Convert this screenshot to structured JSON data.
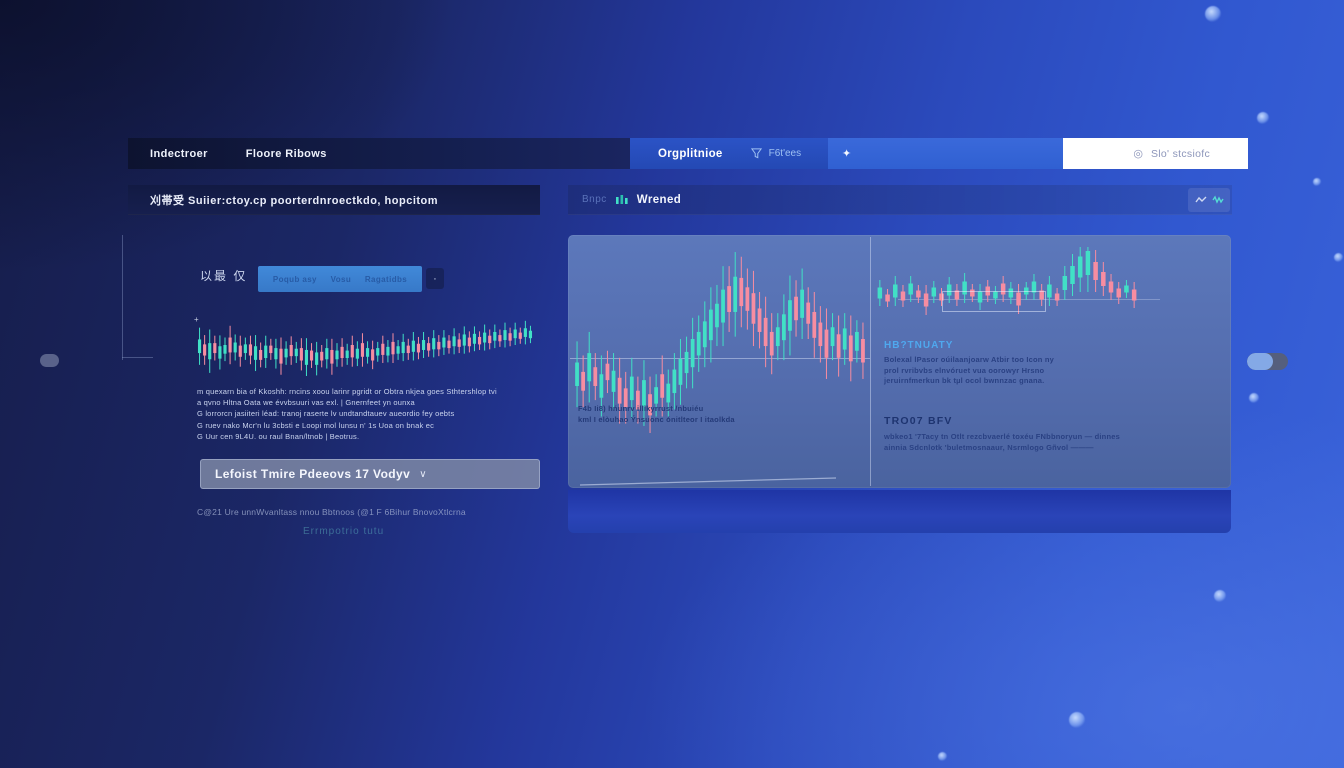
{
  "colors": {
    "candle_up": "#41e0c6",
    "candle_down": "#f78da1",
    "accent_blue": "#3a69da",
    "annotation_heading_blue": "#4fa8ee",
    "teal_icon": "#54dcd4"
  },
  "nav": {
    "items": [
      {
        "label": "Indectroer"
      },
      {
        "label": "Floore Ribows"
      }
    ],
    "brand": "Orgplitnioe",
    "filter_label": "F6t'ees",
    "star_glyph": "✦",
    "search": {
      "icon_glyph": "◎",
      "placeholder": "Slo' stcsiofc"
    }
  },
  "left_panel": {
    "header_title": "刈帯受  Suiier:ctoy.cp  poorterdnroectkdo,  hopcitom",
    "cjk_label": "以最 仅",
    "button_group": [
      "Poqub asy",
      "Vosu",
      "Ragatidbs"
    ],
    "more_label": "·",
    "tick_glyph": "+",
    "paragraph_lines": [
      "m quexarn bia of Kkoshh: rncins xoou larinr pgridt or Obtra nkjea goes Sthtershlop tvi",
      "a qvno Hltna  Oata we  évvbsuuri vas exl.   |   Gnernfeet yn ounxa",
      "G lorrorcn jasiiteri  léad: tranoj raserte lv undtandtauev aueordio fey oebts",
      "G ruev nako Mcr'n lu 3cbsti e  Loopi mol  lunsu n' 1s Uoa on bnak ec",
      "G Uur cen  9L4U. ou raul  Bnan/ltnob | Beotrus."
    ],
    "dropdown": {
      "label": "Lefoist Tmire Pdeeovs 17 Vodyv",
      "chevron": "∨"
    },
    "footer_line": "C@21 Ure unnWvanltass nnou Bbtnoos  (@1 F 6Bihur BnovoXtlcrna",
    "footer_faint": "Errmpotrio tutu"
  },
  "right_panel": {
    "header_prefix": "Bnpc",
    "header_title": "Wrened",
    "note_lines": [
      "F4b Ii8) hńunrv illikyrrust /nbuiéu",
      "kml I elòuhao Ýnsuonc ónitlteor I itaolkda"
    ],
    "annotation1": {
      "heading": "HB?TNUATY",
      "lines": [
        "Bolexal lPasor oúilaanjoarw Atbir too Icon ny",
        "prol rvribvbs elnvóruet vua oorowyr Hrsno",
        "jeruirnfmerkun bk tµl ocol bwnnzac gnana."
      ]
    },
    "annotation2": {
      "heading": "TRO07 BFV",
      "lines": [
        "wbkeo1 '7Tacy tn Otlt rezcbvaerlé toxéu FNbbnoryun — dinnes",
        "ainnia Sdcnlotk 'buletmosnaaur, Nsrmlogo Gñvol ———"
      ]
    }
  },
  "chart_data": [
    {
      "type": "candlestick",
      "id": "mini",
      "title": "",
      "grid": false,
      "up_color": "#41e0c6",
      "down_color": "#f78da1",
      "candles": [
        [
          52,
          60,
          22,
          1
        ],
        [
          58,
          48,
          18,
          0
        ],
        [
          60,
          70,
          26,
          1
        ],
        [
          55,
          40,
          16,
          0
        ],
        [
          62,
          55,
          20,
          1
        ],
        [
          57,
          38,
          14,
          1
        ],
        [
          50,
          62,
          24,
          0
        ],
        [
          54,
          42,
          16,
          1
        ],
        [
          60,
          50,
          18,
          0
        ],
        [
          56,
          36,
          14,
          1
        ],
        [
          58,
          46,
          18,
          0
        ],
        [
          63,
          58,
          22,
          1
        ],
        [
          66,
          40,
          16,
          0
        ],
        [
          61,
          52,
          20,
          1
        ],
        [
          57,
          34,
          12,
          0
        ],
        [
          64,
          48,
          18,
          1
        ],
        [
          68,
          60,
          24,
          0
        ],
        [
          63,
          38,
          14,
          1
        ],
        [
          59,
          46,
          18,
          0
        ],
        [
          62,
          34,
          12,
          1
        ],
        [
          65,
          52,
          20,
          0
        ],
        [
          70,
          62,
          24,
          1
        ],
        [
          67,
          40,
          16,
          0
        ],
        [
          72,
          54,
          20,
          1
        ],
        [
          68,
          36,
          14,
          0
        ],
        [
          64,
          48,
          18,
          1
        ],
        [
          69,
          58,
          22,
          0
        ],
        [
          66,
          38,
          14,
          1
        ],
        [
          62,
          46,
          18,
          0
        ],
        [
          65,
          34,
          12,
          1
        ],
        [
          60,
          50,
          20,
          0
        ],
        [
          64,
          40,
          16,
          1
        ],
        [
          58,
          54,
          22,
          0
        ],
        [
          62,
          36,
          14,
          1
        ],
        [
          66,
          46,
          18,
          0
        ],
        [
          61,
          32,
          12,
          1
        ],
        [
          57,
          44,
          18,
          0
        ],
        [
          60,
          36,
          14,
          1
        ],
        [
          55,
          48,
          20,
          0
        ],
        [
          58,
          32,
          12,
          1
        ],
        [
          54,
          44,
          18,
          1
        ],
        [
          57,
          34,
          12,
          0
        ],
        [
          52,
          46,
          18,
          1
        ],
        [
          55,
          36,
          14,
          0
        ],
        [
          50,
          42,
          16,
          1
        ],
        [
          53,
          32,
          12,
          0
        ],
        [
          48,
          44,
          18,
          1
        ],
        [
          51,
          34,
          12,
          0
        ],
        [
          46,
          40,
          16,
          1
        ],
        [
          49,
          30,
          12,
          0
        ],
        [
          44,
          42,
          16,
          1
        ],
        [
          47,
          32,
          12,
          0
        ],
        [
          42,
          44,
          18,
          1
        ],
        [
          45,
          34,
          14,
          0
        ],
        [
          40,
          40,
          16,
          1
        ],
        [
          43,
          30,
          12,
          0
        ],
        [
          38,
          42,
          16,
          1
        ],
        [
          41,
          32,
          12,
          0
        ],
        [
          36,
          38,
          14,
          1
        ],
        [
          39,
          28,
          10,
          0
        ],
        [
          34,
          40,
          16,
          1
        ],
        [
          37,
          30,
          12,
          0
        ],
        [
          32,
          36,
          14,
          1
        ],
        [
          35,
          26,
          10,
          0
        ],
        [
          30,
          38,
          14,
          1
        ],
        [
          33,
          28,
          12,
          1
        ]
      ]
    },
    {
      "type": "candlestick",
      "id": "main-left",
      "title": "",
      "grid": true,
      "up_color": "#41e0c6",
      "down_color": "#f78da1",
      "candles": [
        [
          55,
          28,
          10,
          1
        ],
        [
          58,
          22,
          8,
          0
        ],
        [
          52,
          30,
          12,
          1
        ],
        [
          56,
          20,
          8,
          0
        ],
        [
          60,
          26,
          10,
          1
        ],
        [
          54,
          18,
          7,
          0
        ],
        [
          58,
          24,
          9,
          1
        ],
        [
          62,
          28,
          11,
          0
        ],
        [
          65,
          22,
          8,
          0
        ],
        [
          61,
          26,
          10,
          1
        ],
        [
          66,
          20,
          8,
          0
        ],
        [
          63,
          28,
          11,
          1
        ],
        [
          68,
          24,
          9,
          0
        ],
        [
          64,
          18,
          7,
          1
        ],
        [
          60,
          26,
          10,
          0
        ],
        [
          63,
          20,
          8,
          1
        ],
        [
          58,
          24,
          10,
          1
        ],
        [
          54,
          28,
          11,
          1
        ],
        [
          50,
          22,
          9,
          1
        ],
        [
          46,
          30,
          12,
          1
        ],
        [
          42,
          24,
          10,
          1
        ],
        [
          38,
          28,
          11,
          1
        ],
        [
          34,
          32,
          13,
          1
        ],
        [
          30,
          26,
          10,
          1
        ],
        [
          26,
          34,
          14,
          1
        ],
        [
          23,
          28,
          11,
          0
        ],
        [
          21,
          36,
          15,
          1
        ],
        [
          20,
          30,
          12,
          0
        ],
        [
          23,
          26,
          10,
          0
        ],
        [
          27,
          32,
          13,
          0
        ],
        [
          32,
          24,
          10,
          0
        ],
        [
          37,
          30,
          12,
          0
        ],
        [
          42,
          26,
          10,
          0
        ],
        [
          39,
          20,
          8,
          1
        ],
        [
          35,
          28,
          11,
          1
        ],
        [
          30,
          34,
          13,
          1
        ],
        [
          27,
          24,
          10,
          0
        ],
        [
          25,
          30,
          12,
          1
        ],
        [
          29,
          22,
          9,
          0
        ],
        [
          34,
          28,
          11,
          0
        ],
        [
          38,
          24,
          10,
          0
        ],
        [
          42,
          30,
          12,
          0
        ],
        [
          39,
          20,
          8,
          1
        ],
        [
          43,
          26,
          10,
          0
        ],
        [
          40,
          22,
          9,
          1
        ],
        [
          44,
          28,
          11,
          0
        ],
        [
          41,
          18,
          8,
          1
        ],
        [
          45,
          24,
          10,
          0
        ]
      ]
    },
    {
      "type": "candlestick",
      "id": "main-right",
      "title": "",
      "grid": true,
      "up_color": "#41e0c6",
      "down_color": "#f78da1",
      "candles": [
        [
          46,
          26,
          11,
          1
        ],
        [
          51,
          18,
          7,
          0
        ],
        [
          44,
          30,
          13,
          1
        ],
        [
          49,
          22,
          9,
          0
        ],
        [
          42,
          26,
          11,
          1
        ],
        [
          47,
          18,
          7,
          0
        ],
        [
          53,
          30,
          13,
          0
        ],
        [
          45,
          22,
          9,
          1
        ],
        [
          50,
          18,
          7,
          0
        ],
        [
          43,
          26,
          11,
          1
        ],
        [
          48,
          22,
          9,
          0
        ],
        [
          41,
          30,
          13,
          1
        ],
        [
          46,
          18,
          7,
          0
        ],
        [
          50,
          26,
          11,
          1
        ],
        [
          44,
          22,
          9,
          0
        ],
        [
          48,
          18,
          7,
          1
        ],
        [
          42,
          26,
          11,
          0
        ],
        [
          46,
          22,
          9,
          1
        ],
        [
          52,
          30,
          13,
          0
        ],
        [
          44,
          18,
          7,
          1
        ],
        [
          40,
          26,
          11,
          1
        ],
        [
          48,
          22,
          9,
          0
        ],
        [
          44,
          30,
          13,
          1
        ],
        [
          50,
          18,
          7,
          0
        ],
        [
          36,
          34,
          14,
          1
        ],
        [
          28,
          42,
          18,
          1
        ],
        [
          20,
          50,
          21,
          1
        ],
        [
          16,
          58,
          24,
          1
        ],
        [
          24,
          42,
          18,
          0
        ],
        [
          32,
          34,
          14,
          0
        ],
        [
          40,
          26,
          11,
          0
        ],
        [
          46,
          22,
          9,
          0
        ],
        [
          42,
          18,
          7,
          1
        ],
        [
          48,
          26,
          11,
          0
        ]
      ]
    }
  ]
}
